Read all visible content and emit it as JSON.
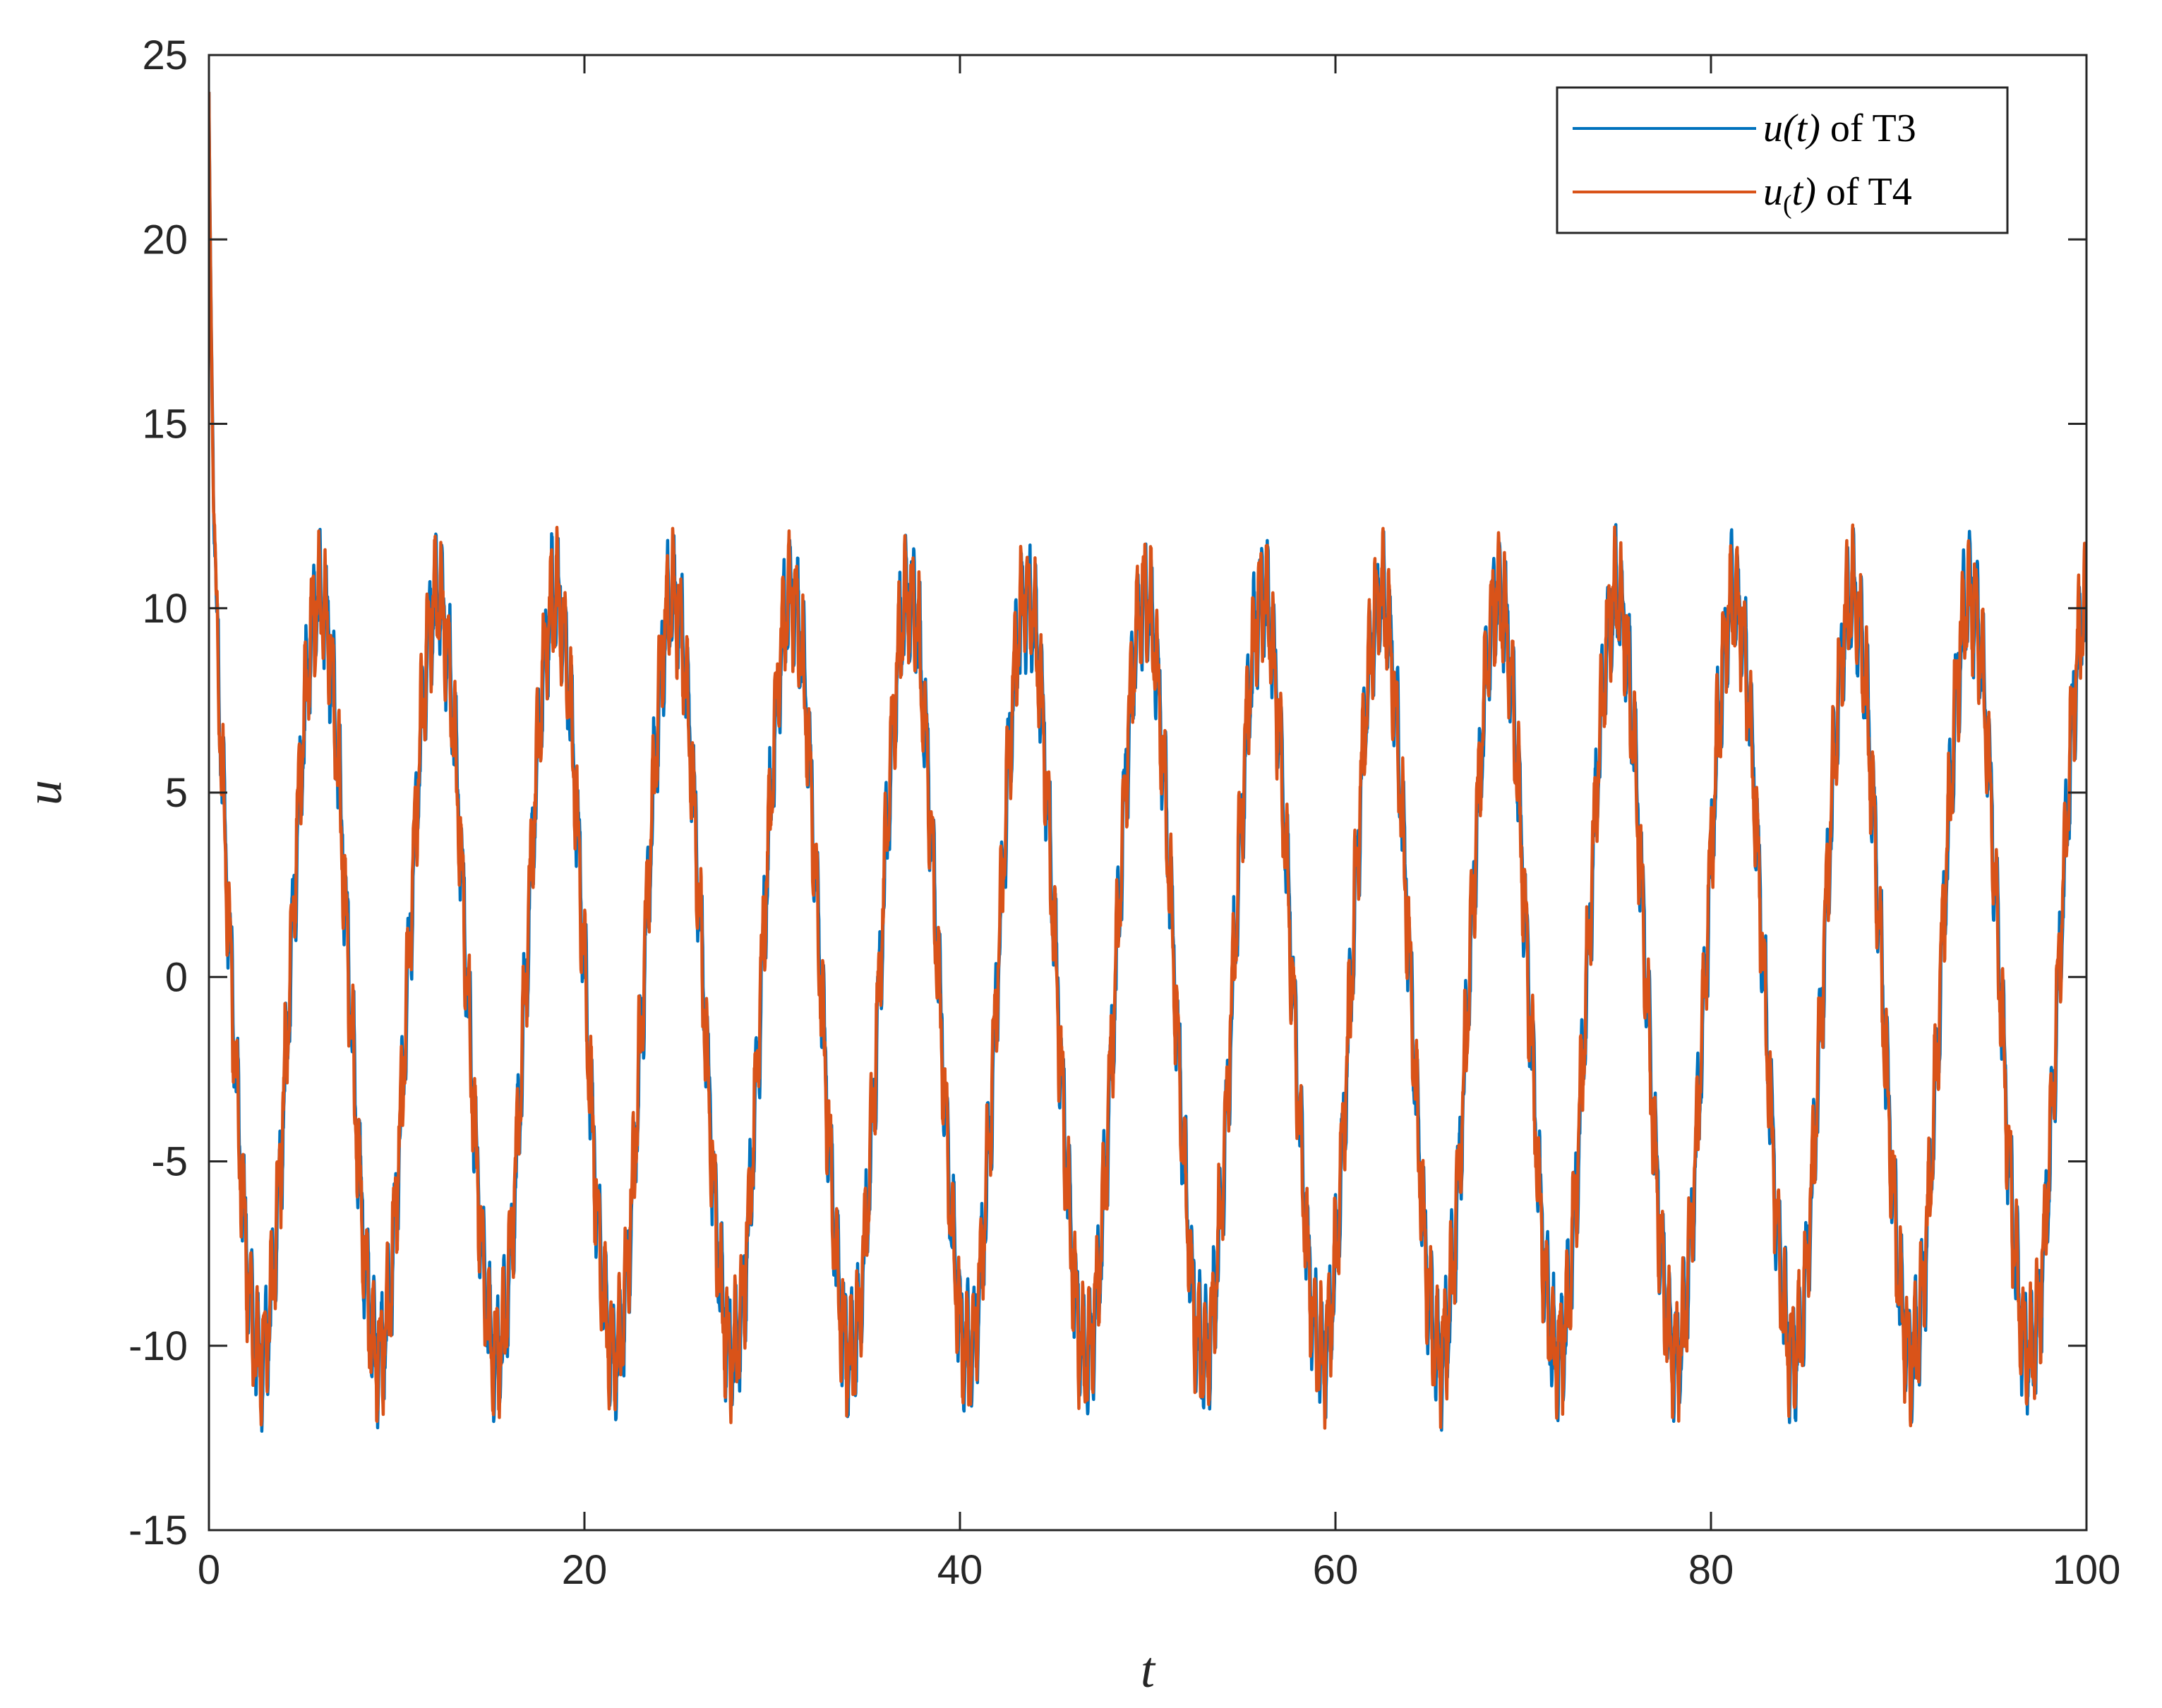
{
  "chart_data": {
    "type": "line",
    "xlabel": "t",
    "ylabel": "u",
    "xlim": [
      0,
      100
    ],
    "ylim": [
      -15,
      25
    ],
    "xticks": [
      0,
      20,
      40,
      60,
      80,
      100
    ],
    "yticks": [
      -15,
      -10,
      -5,
      0,
      5,
      10,
      15,
      20,
      25
    ],
    "xtick_labels": [
      "0",
      "20",
      "40",
      "60",
      "80",
      "100"
    ],
    "ytick_labels": [
      "-15",
      "-10",
      "-5",
      "0",
      "5",
      "10",
      "15",
      "20",
      "25"
    ],
    "grid": false,
    "legend_position": "top-right",
    "signal_model": {
      "initial_value": 24,
      "period": 6.28,
      "amplitude": 10.3,
      "high_freq_ripple_amplitude": 1.2
    },
    "series": [
      {
        "name": "u(t) of T3",
        "legend": {
          "pre": "u",
          "sub": "",
          "post": "(t)",
          "suffix": " of T3"
        },
        "color": "#0072BD",
        "min": -13.7,
        "max": 24,
        "peaks_approx": [
          {
            "t": 5,
            "u": 11.0
          },
          {
            "t": 11.3,
            "u": 11.2
          },
          {
            "t": 17.6,
            "u": 11.0
          },
          {
            "t": 42.7,
            "u": 11.2
          },
          {
            "t": 48.9,
            "u": 11.2
          },
          {
            "t": 92.9,
            "u": 11.2
          }
        ],
        "troughs_approx": [
          {
            "t": 2.0,
            "u": -13.7
          },
          {
            "t": 8.3,
            "u": -12.3
          },
          {
            "t": 14.5,
            "u": -12.0
          },
          {
            "t": 39.7,
            "u": -11.9
          },
          {
            "t": 71.1,
            "u": -11.8
          },
          {
            "t": 96.3,
            "u": -11.7
          }
        ]
      },
      {
        "name": "u_(t) of T4",
        "legend": {
          "pre": "u",
          "sub": "(",
          "post": "t)",
          "suffix": " of T4"
        },
        "color": "#D95319",
        "min": -12.6,
        "max": 24,
        "peaks_approx": [
          {
            "t": 5.1,
            "u": 11.4
          },
          {
            "t": 11.4,
            "u": 11.3
          },
          {
            "t": 17.6,
            "u": 11.2
          },
          {
            "t": 42.7,
            "u": 11.0
          },
          {
            "t": 86.7,
            "u": 11.1
          },
          {
            "t": 92.9,
            "u": 11.0
          }
        ],
        "troughs_approx": [
          {
            "t": 2.1,
            "u": -12.6
          },
          {
            "t": 8.4,
            "u": -12.6
          },
          {
            "t": 14.6,
            "u": -12.3
          },
          {
            "t": 20.9,
            "u": -12.3
          },
          {
            "t": 58.5,
            "u": -11.2
          },
          {
            "t": 96.2,
            "u": -11.1
          }
        ]
      }
    ]
  }
}
